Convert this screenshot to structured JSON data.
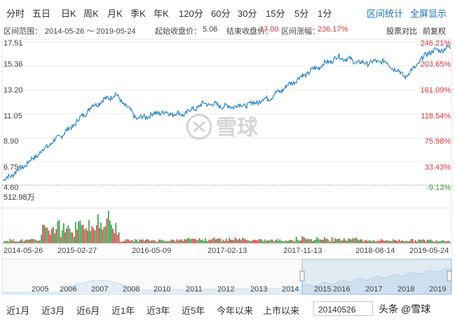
{
  "periods": [
    "分时",
    "五日",
    "日K",
    "周K",
    "月K",
    "季K",
    "年K",
    "120分",
    "60分",
    "30分",
    "15分",
    "5分",
    "1分"
  ],
  "tools": {
    "range_stats": "区间统计",
    "fullscreen": "全屏显示"
  },
  "info": {
    "range_label": "区间范围：",
    "range_value": "2014-05-26 ～ 2019-05-24",
    "start_label": "起始收盘价：",
    "start_value": "5.06",
    "end_label": "结束收盘价：",
    "end_value": "17.00",
    "change_label": "区间涨幅：",
    "change_value": "236.17%",
    "compare": "股票对比",
    "adjust": "前复权"
  },
  "price_axis": [
    "17.51",
    "15.36",
    "13.20",
    "11.05",
    "8.90",
    "6.75",
    "4.60"
  ],
  "pct_axis": [
    "246.21%",
    "203.65%",
    "161.09%",
    "118.54%",
    "75.98%",
    "33.43%",
    "-9.13%"
  ],
  "volume_label": "512.98万",
  "date_axis": [
    "2014-05-26",
    "2015-02-27",
    "2016-05-09",
    "2017-02-13",
    "2017-11-13",
    "2018-08-14",
    "2019-05-24"
  ],
  "nav_years": [
    "2005",
    "2006",
    "2007",
    "2008",
    "2010",
    "2011",
    "2012",
    "2013",
    "2014",
    "2015",
    "2016",
    "2017",
    "2018",
    "2019"
  ],
  "ranges": [
    "近1月",
    "近3月",
    "近6月",
    "近1年",
    "近3年",
    "近5年",
    "今年以来",
    "上市以来"
  ],
  "date_value": "20140526",
  "brand_watermark": "雪球",
  "footer_watermark": "头条 @雪球",
  "colors": {
    "line": "#2f86c6",
    "up": "#d9363e",
    "down": "#2c9a3a",
    "link": "#1a6fb5"
  },
  "chart_data": {
    "type": "line",
    "x": [
      "2014-05-26",
      "2014-08",
      "2014-11",
      "2015-02-27",
      "2015-05",
      "2015-06",
      "2015-09",
      "2015-12",
      "2016-05-09",
      "2016-09",
      "2016-12",
      "2017-02-13",
      "2017-05",
      "2017-08",
      "2017-11-13",
      "2018-02",
      "2018-05",
      "2018-08-14",
      "2018-11",
      "2019-02",
      "2019-05-24"
    ],
    "values": [
      5.06,
      6.5,
      8.2,
      9.8,
      11.8,
      12.8,
      10.6,
      11.2,
      11.0,
      12.0,
      11.7,
      11.9,
      12.6,
      14.0,
      15.2,
      16.2,
      15.6,
      15.8,
      14.4,
      16.6,
      17.0
    ],
    "ylim": [
      4.6,
      17.51
    ],
    "pct_ylim": [
      -9.13,
      246.21
    ],
    "volume_max": "512.98万"
  }
}
